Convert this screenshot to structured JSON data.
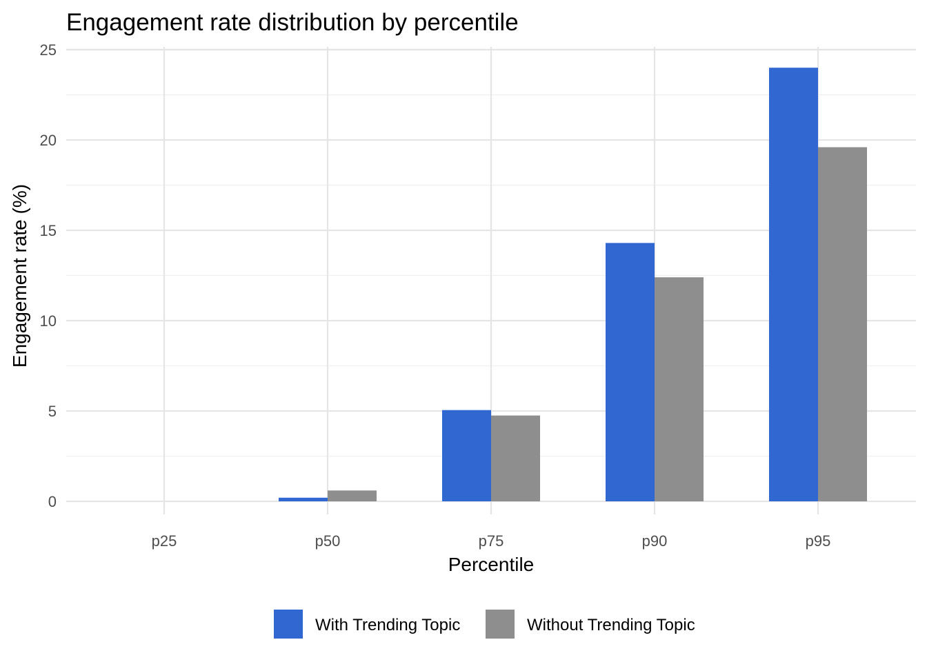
{
  "chart_data": {
    "type": "bar",
    "title": "Engagement rate distribution by percentile",
    "xlabel": "Percentile",
    "ylabel": "Engagement rate (%)",
    "categories": [
      "p25",
      "p50",
      "p75",
      "p90",
      "p95"
    ],
    "series": [
      {
        "name": "With Trending Topic",
        "color": "#3067d0",
        "values": [
          0,
          0.2,
          5.05,
          14.3,
          24.0
        ]
      },
      {
        "name": "Without Trending Topic",
        "color": "#8e8e8e",
        "values": [
          0,
          0.6,
          4.75,
          12.4,
          19.6
        ]
      }
    ],
    "ylim": [
      0,
      25
    ],
    "yticks": [
      0,
      5,
      10,
      15,
      20,
      25
    ],
    "grid": true,
    "legend_position": "bottom"
  }
}
